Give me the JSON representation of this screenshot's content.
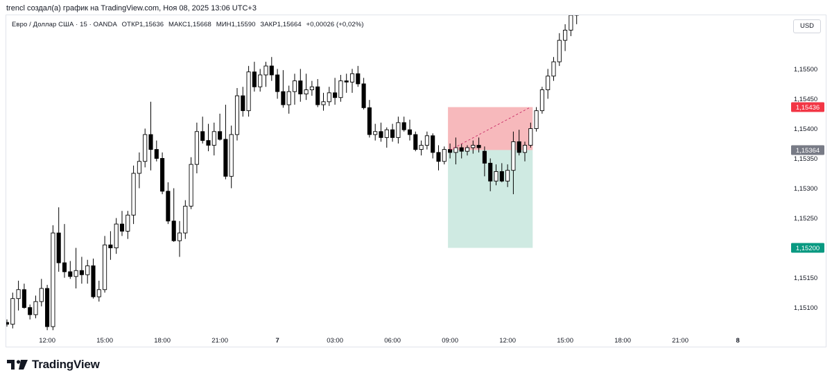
{
  "header": {
    "caption": "trencl создал(а) график на TradingView.com, Ноя 08, 2025 13:06 UTC+3"
  },
  "legend": {
    "symbol": "Евро / Доллар США · 15 · OANDA",
    "open_label": "ОТКР",
    "open": "1,15636",
    "high_label": "МАКС",
    "high": "1,15668",
    "low_label": "МИН",
    "low": "1,15590",
    "close_label": "ЗАКР",
    "close": "1,15664",
    "change": "+0,00026 (+0,02%)"
  },
  "currency": "USD",
  "brand": {
    "name": "TradingView",
    "logo": "tradingview-logo-icon"
  },
  "colors": {
    "stop_zone": "#f7b9bc",
    "target_zone": "#cfeae2",
    "stop_tag": "#f23645",
    "current_tag": "#787b86",
    "target_tag": "#089981",
    "candle_up": "#ffffff",
    "candle_down": "#000000"
  },
  "chart_data": {
    "type": "candlestick",
    "symbol": "EURUSD",
    "timeframe": "15",
    "ylim": [
      1.1506,
      1.1559
    ],
    "y_ticks": [
      "1,15100",
      "1,15150",
      "1,15250",
      "1,15300",
      "1,15350",
      "1,15400",
      "1,15450",
      "1,15500"
    ],
    "x_ticks": [
      {
        "label": "12:00",
        "bar": 7
      },
      {
        "label": "15:00",
        "bar": 17
      },
      {
        "label": "18:00",
        "bar": 27
      },
      {
        "label": "21:00",
        "bar": 37
      },
      {
        "label": "7",
        "bar": 47,
        "bold": true
      },
      {
        "label": "03:00",
        "bar": 57
      },
      {
        "label": "06:00",
        "bar": 67
      },
      {
        "label": "09:00",
        "bar": 77
      },
      {
        "label": "12:00",
        "bar": 87
      },
      {
        "label": "15:00",
        "bar": 97
      },
      {
        "label": "18:00",
        "bar": 107
      },
      {
        "label": "21:00",
        "bar": 117
      },
      {
        "label": "8",
        "bar": 127,
        "bold": true
      }
    ],
    "price_tags": [
      {
        "name": "stop",
        "label": "1,15436",
        "value": 1.15436,
        "color": "#f23645"
      },
      {
        "name": "current",
        "label": "1,15364",
        "value": 1.15364,
        "color": "#787b86"
      },
      {
        "name": "target",
        "label": "1,15200",
        "value": 1.152,
        "color": "#089981"
      }
    ],
    "position": {
      "type": "short",
      "start_bar": 77,
      "end_bar": 91,
      "entry": 1.15364,
      "stop": 1.15436,
      "target": 1.152,
      "trade_line": {
        "from_bar": 77,
        "from_price": 1.15364,
        "to_bar": 91,
        "to_price": 1.15436
      }
    },
    "candles": [
      [
        1.15075,
        1.1508,
        1.15068,
        1.15072
      ],
      [
        1.15072,
        1.15125,
        1.15065,
        1.15115
      ],
      [
        1.15115,
        1.15145,
        1.15095,
        1.1513
      ],
      [
        1.1513,
        1.1514,
        1.15098,
        1.151
      ],
      [
        1.151,
        1.15105,
        1.1508,
        1.15088
      ],
      [
        1.15088,
        1.1512,
        1.15082,
        1.1511
      ],
      [
        1.1511,
        1.15148,
        1.15102,
        1.15132
      ],
      [
        1.15132,
        1.15138,
        1.15062,
        1.15068
      ],
      [
        1.15068,
        1.15238,
        1.15062,
        1.15225
      ],
      [
        1.15225,
        1.15268,
        1.1516,
        1.15175
      ],
      [
        1.15175,
        1.1524,
        1.1515,
        1.1516
      ],
      [
        1.1516,
        1.15178,
        1.15148,
        1.15152
      ],
      [
        1.15152,
        1.152,
        1.15132,
        1.15162
      ],
      [
        1.15162,
        1.15185,
        1.1514,
        1.15155
      ],
      [
        1.15155,
        1.1518,
        1.1514,
        1.1517
      ],
      [
        1.1517,
        1.15182,
        1.15115,
        1.15118
      ],
      [
        1.15118,
        1.15145,
        1.1511,
        1.1513
      ],
      [
        1.1513,
        1.1522,
        1.15125,
        1.15205
      ],
      [
        1.15205,
        1.15228,
        1.1518,
        1.152
      ],
      [
        1.152,
        1.1525,
        1.1519,
        1.1524
      ],
      [
        1.1524,
        1.15262,
        1.1522,
        1.15228
      ],
      [
        1.15228,
        1.15262,
        1.15215,
        1.15255
      ],
      [
        1.15255,
        1.15338,
        1.1524,
        1.15325
      ],
      [
        1.15325,
        1.1536,
        1.153,
        1.15345
      ],
      [
        1.15345,
        1.154,
        1.15335,
        1.1539
      ],
      [
        1.1539,
        1.15445,
        1.1533,
        1.15365
      ],
      [
        1.15365,
        1.1538,
        1.15345,
        1.1535
      ],
      [
        1.1535,
        1.1536,
        1.1529,
        1.15295
      ],
      [
        1.15295,
        1.1531,
        1.1524,
        1.15245
      ],
      [
        1.15245,
        1.153,
        1.1521,
        1.15212
      ],
      [
        1.15212,
        1.15245,
        1.15185,
        1.15225
      ],
      [
        1.15225,
        1.1528,
        1.15215,
        1.1527
      ],
      [
        1.1527,
        1.15352,
        1.15265,
        1.1534
      ],
      [
        1.1534,
        1.1541,
        1.15325,
        1.15395
      ],
      [
        1.15395,
        1.1542,
        1.15375,
        1.1538
      ],
      [
        1.1538,
        1.15408,
        1.15362,
        1.15372
      ],
      [
        1.15372,
        1.1541,
        1.15355,
        1.15395
      ],
      [
        1.15395,
        1.15425,
        1.1538,
        1.15382
      ],
      [
        1.15382,
        1.1544,
        1.15315,
        1.1532
      ],
      [
        1.1532,
        1.15405,
        1.153,
        1.1539
      ],
      [
        1.1539,
        1.15468,
        1.1538,
        1.15455
      ],
      [
        1.15455,
        1.1547,
        1.1542,
        1.1543
      ],
      [
        1.1543,
        1.15505,
        1.1542,
        1.15495
      ],
      [
        1.15495,
        1.15512,
        1.15462,
        1.1547
      ],
      [
        1.1547,
        1.155,
        1.15462,
        1.1549
      ],
      [
        1.1549,
        1.15512,
        1.1547,
        1.15505
      ],
      [
        1.15505,
        1.1552,
        1.1548,
        1.1549
      ],
      [
        1.1549,
        1.155,
        1.1545,
        1.15462
      ],
      [
        1.15462,
        1.15498,
        1.15435,
        1.1544
      ],
      [
        1.1544,
        1.15472,
        1.15425,
        1.15462
      ],
      [
        1.15462,
        1.15492,
        1.1544,
        1.1548
      ],
      [
        1.1548,
        1.155,
        1.15445,
        1.15458
      ],
      [
        1.15458,
        1.15492,
        1.15448,
        1.15465
      ],
      [
        1.15465,
        1.1548,
        1.15455,
        1.1547
      ],
      [
        1.1547,
        1.15483,
        1.15436,
        1.1544
      ],
      [
        1.1544,
        1.1546,
        1.1543,
        1.15445
      ],
      [
        1.15445,
        1.1547,
        1.15438,
        1.1546
      ],
      [
        1.1546,
        1.15485,
        1.1544,
        1.15452
      ],
      [
        1.15452,
        1.1549,
        1.15445,
        1.1548
      ],
      [
        1.1548,
        1.15492,
        1.1546,
        1.15478
      ],
      [
        1.15478,
        1.155,
        1.1546,
        1.15492
      ],
      [
        1.15492,
        1.15505,
        1.1547,
        1.15475
      ],
      [
        1.15475,
        1.15485,
        1.15432,
        1.15435
      ],
      [
        1.15435,
        1.15448,
        1.15385,
        1.1539
      ],
      [
        1.1539,
        1.15408,
        1.1538,
        1.15395
      ],
      [
        1.15395,
        1.1541,
        1.15378,
        1.15385
      ],
      [
        1.15385,
        1.15402,
        1.15368,
        1.15398
      ],
      [
        1.15398,
        1.15408,
        1.15378,
        1.15385
      ],
      [
        1.15385,
        1.1542,
        1.15375,
        1.1541
      ],
      [
        1.1541,
        1.1542,
        1.15395,
        1.15398
      ],
      [
        1.15398,
        1.15415,
        1.1538,
        1.1539
      ],
      [
        1.1539,
        1.15395,
        1.15362,
        1.15365
      ],
      [
        1.15365,
        1.1538,
        1.15355,
        1.15372
      ],
      [
        1.15372,
        1.15395,
        1.15365,
        1.15388
      ],
      [
        1.15388,
        1.15392,
        1.1535,
        1.1536
      ],
      [
        1.1536,
        1.15372,
        1.1533,
        1.15345
      ],
      [
        1.15345,
        1.1537,
        1.1534,
        1.15365
      ],
      [
        1.15365,
        1.15375,
        1.1535,
        1.1536
      ],
      [
        1.1536,
        1.15385,
        1.1534,
        1.15368
      ],
      [
        1.15368,
        1.15375,
        1.1535,
        1.15362
      ],
      [
        1.15362,
        1.15372,
        1.15355,
        1.15368
      ],
      [
        1.15368,
        1.1538,
        1.15358,
        1.15372
      ],
      [
        1.15372,
        1.15385,
        1.1536,
        1.15368
      ],
      [
        1.15362,
        1.1537,
        1.1532,
        1.15342
      ],
      [
        1.15342,
        1.1535,
        1.15295,
        1.15312
      ],
      [
        1.15312,
        1.1534,
        1.15305,
        1.15328
      ],
      [
        1.15328,
        1.15342,
        1.1531,
        1.15312
      ],
      [
        1.15312,
        1.1534,
        1.15302,
        1.1533
      ],
      [
        1.1533,
        1.15395,
        1.1529,
        1.15378
      ],
      [
        1.15378,
        1.15398,
        1.15355,
        1.1536
      ],
      [
        1.1536,
        1.15378,
        1.15345,
        1.15372
      ],
      [
        1.15372,
        1.1541,
        1.15368,
        1.154
      ],
      [
        1.154,
        1.15436,
        1.15395,
        1.1543
      ],
      [
        1.1543,
        1.1547,
        1.15425,
        1.15465
      ],
      [
        1.15465,
        1.155,
        1.1545,
        1.15488
      ],
      [
        1.15488,
        1.1552,
        1.1548,
        1.15512
      ],
      [
        1.15512,
        1.1556,
        1.15505,
        1.15548
      ],
      [
        1.15548,
        1.15575,
        1.1553,
        1.15565
      ],
      [
        1.15565,
        1.156,
        1.15555,
        1.1559
      ],
      [
        1.1559,
        1.1562,
        1.15575,
        1.15605
      ]
    ]
  }
}
